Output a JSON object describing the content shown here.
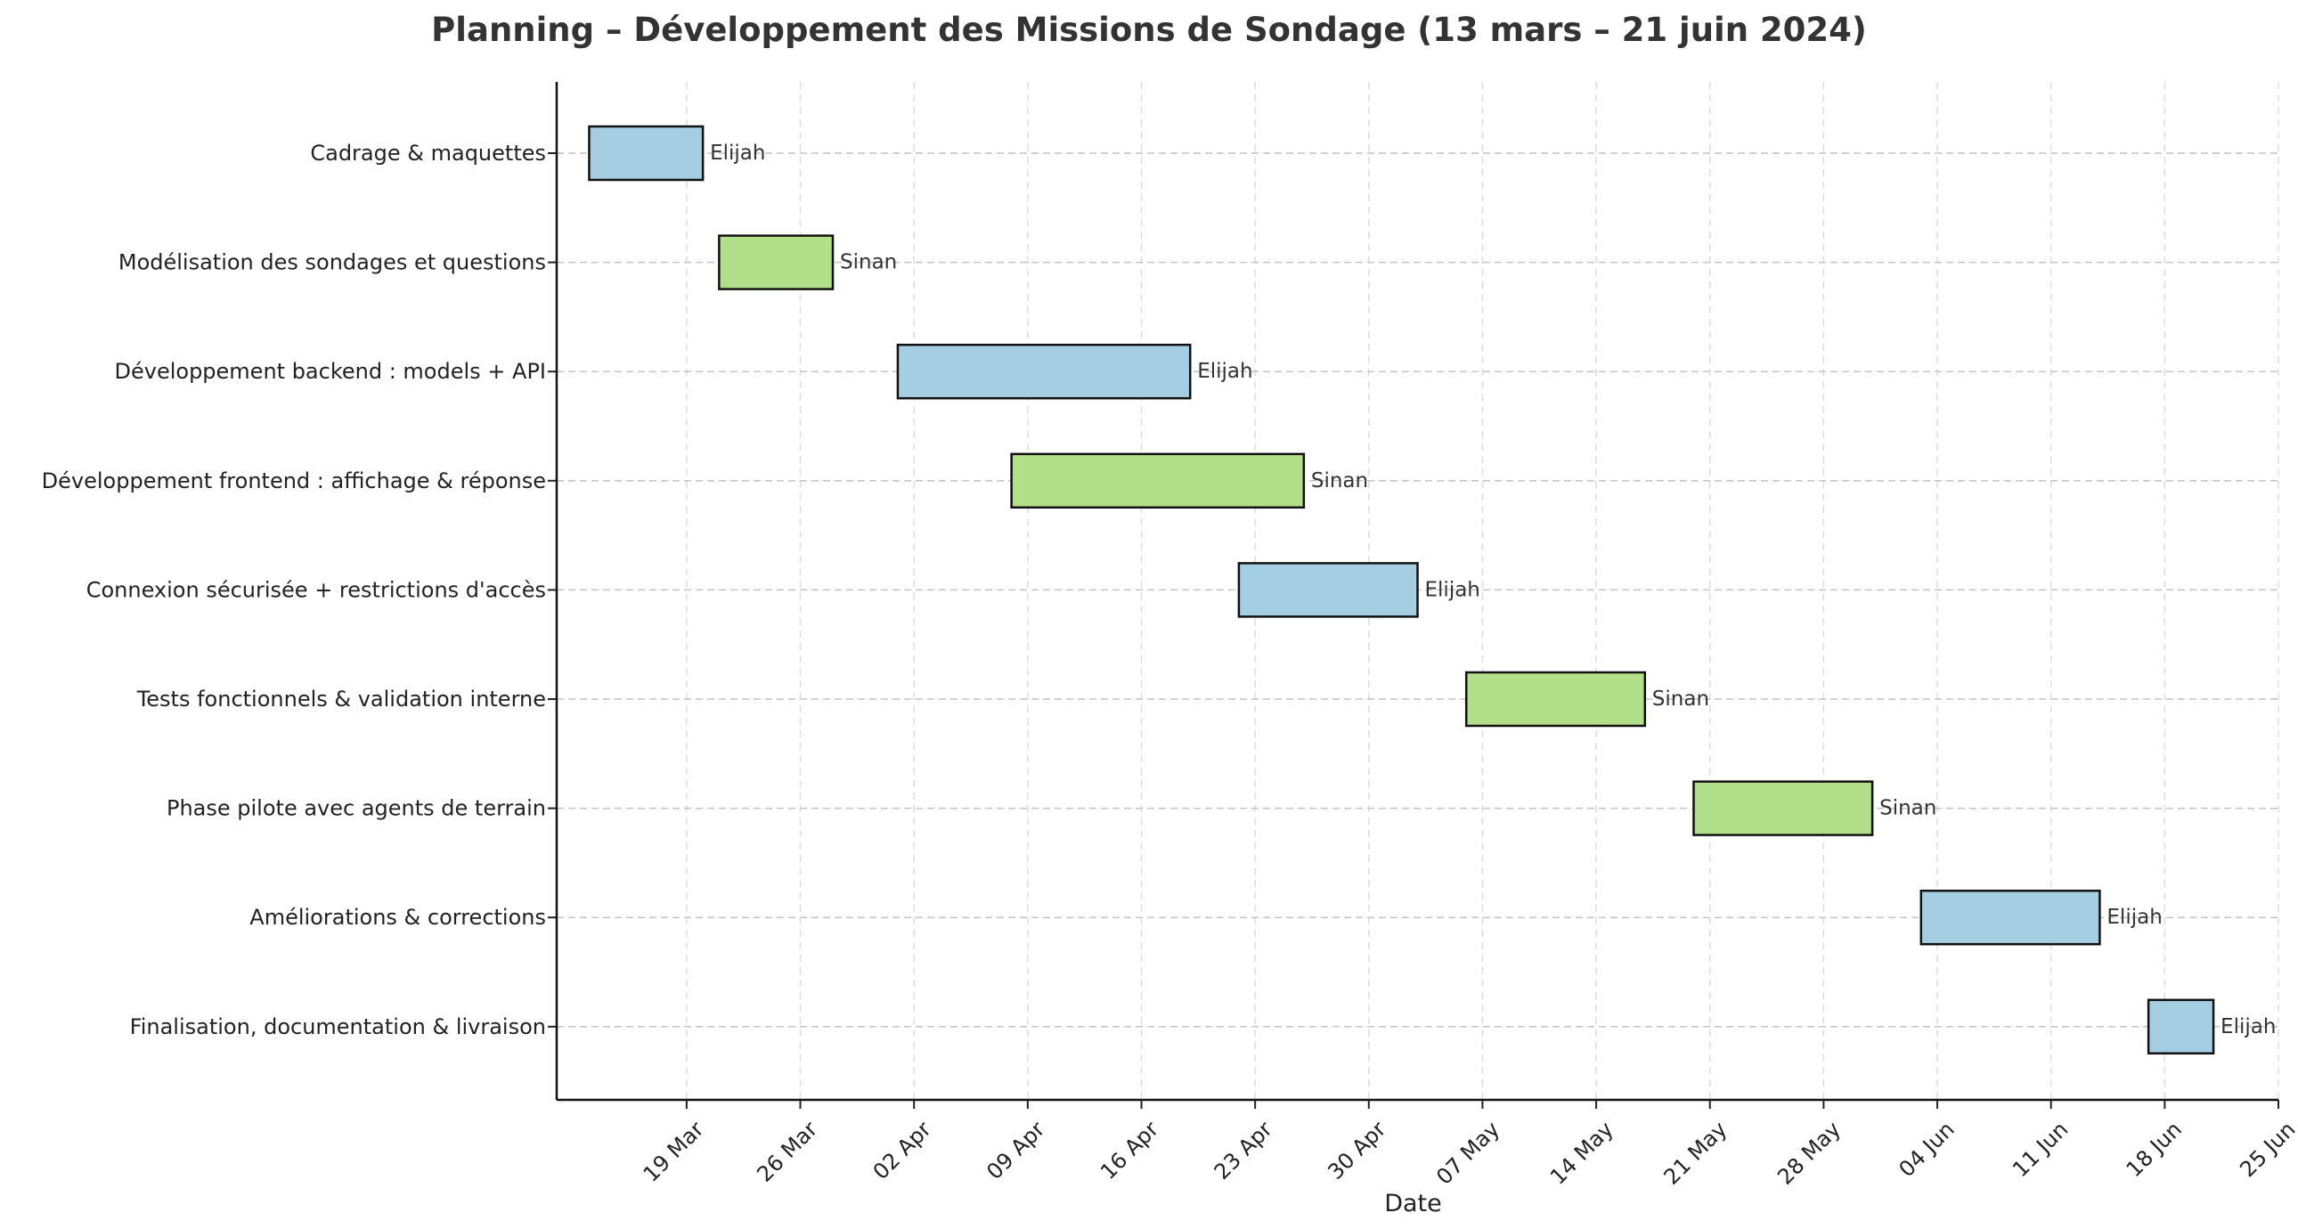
{
  "chart_data": {
    "type": "gantt",
    "title": "Planning – Développement des Missions de Sondage (13 mars – 21 juin 2024)",
    "xlabel": "Date",
    "ylabel": "",
    "xlim": [
      "2024-03-11",
      "2024-06-25"
    ],
    "grid": true,
    "colors": {
      "Elijah": "#a6cee3",
      "Sinan": "#b2df8a"
    },
    "x_ticks": [
      {
        "date": "2024-03-19",
        "label": "19 Mar"
      },
      {
        "date": "2024-03-26",
        "label": "26 Mar"
      },
      {
        "date": "2024-04-02",
        "label": "02 Apr"
      },
      {
        "date": "2024-04-09",
        "label": "09 Apr"
      },
      {
        "date": "2024-04-16",
        "label": "16 Apr"
      },
      {
        "date": "2024-04-23",
        "label": "23 Apr"
      },
      {
        "date": "2024-04-30",
        "label": "30 Apr"
      },
      {
        "date": "2024-05-07",
        "label": "07 May"
      },
      {
        "date": "2024-05-14",
        "label": "14 May"
      },
      {
        "date": "2024-05-21",
        "label": "21 May"
      },
      {
        "date": "2024-05-28",
        "label": "28 May"
      },
      {
        "date": "2024-06-04",
        "label": "04 Jun"
      },
      {
        "date": "2024-06-11",
        "label": "11 Jun"
      },
      {
        "date": "2024-06-18",
        "label": "18 Jun"
      },
      {
        "date": "2024-06-25",
        "label": "25 Jun"
      }
    ],
    "tasks": [
      {
        "name": "Cadrage & maquettes",
        "start": "2024-03-13",
        "end": "2024-03-20",
        "owner": "Elijah"
      },
      {
        "name": "Modélisation des sondages et questions",
        "start": "2024-03-21",
        "end": "2024-03-28",
        "owner": "Sinan"
      },
      {
        "name": "Développement backend : models + API",
        "start": "2024-04-01",
        "end": "2024-04-19",
        "owner": "Elijah"
      },
      {
        "name": "Développement frontend : affichage & réponse",
        "start": "2024-04-08",
        "end": "2024-04-26",
        "owner": "Sinan"
      },
      {
        "name": "Connexion sécurisée + restrictions d'accès",
        "start": "2024-04-22",
        "end": "2024-05-03",
        "owner": "Elijah"
      },
      {
        "name": "Tests fonctionnels & validation interne",
        "start": "2024-05-06",
        "end": "2024-05-17",
        "owner": "Sinan"
      },
      {
        "name": "Phase pilote avec agents de terrain",
        "start": "2024-05-20",
        "end": "2024-05-31",
        "owner": "Sinan"
      },
      {
        "name": "Améliorations & corrections",
        "start": "2024-06-03",
        "end": "2024-06-14",
        "owner": "Elijah"
      },
      {
        "name": "Finalisation, documentation & livraison",
        "start": "2024-06-17",
        "end": "2024-06-21",
        "owner": "Elijah"
      }
    ]
  }
}
